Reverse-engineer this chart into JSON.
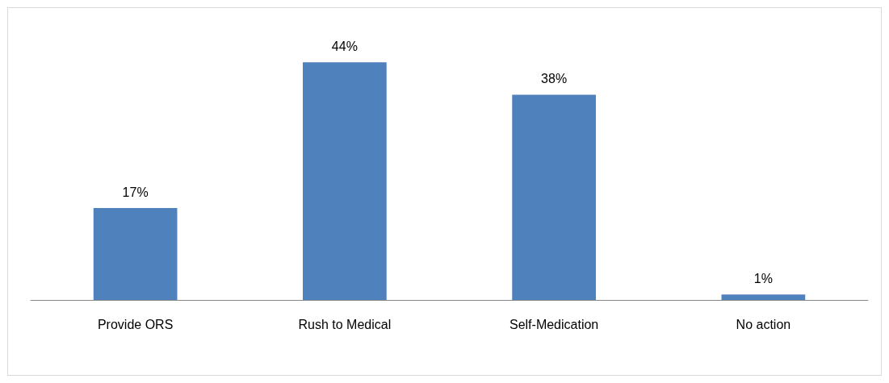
{
  "chart_data": {
    "type": "bar",
    "categories": [
      "Provide ORS",
      "Rush to Medical",
      "Self-Medication",
      "No action"
    ],
    "values": [
      17,
      44,
      38,
      1
    ],
    "value_labels": [
      "17%",
      "44%",
      "38%",
      "1%"
    ],
    "color": "#4f81bd"
  }
}
